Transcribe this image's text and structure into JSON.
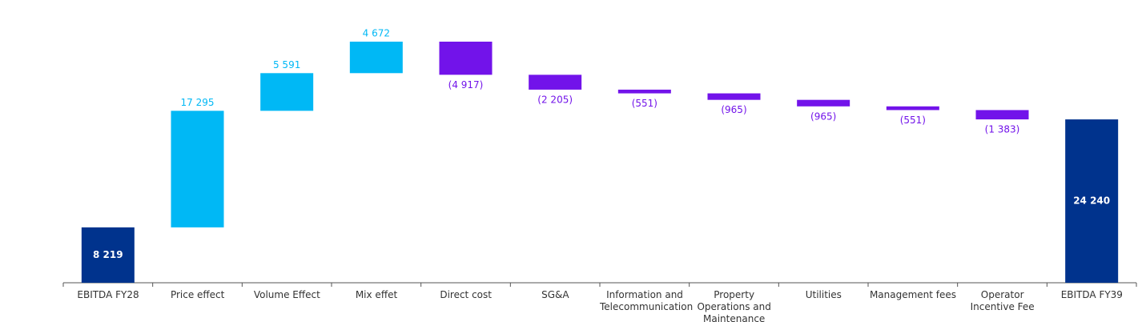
{
  "chart_data": {
    "type": "waterfall",
    "categories": [
      "EBITDA FY28",
      "Price effect",
      "Volume Effect",
      "Mix effet",
      "Direct cost",
      "SG&A",
      "Information and Telecommunication",
      "Property Operations and Maintenance",
      "Utilities",
      "Management fees",
      "Operator Incentive Fee",
      "EBITDA FY39"
    ],
    "measure": [
      "total",
      "relative",
      "relative",
      "relative",
      "relative",
      "relative",
      "relative",
      "relative",
      "relative",
      "relative",
      "relative",
      "total"
    ],
    "values": [
      8219,
      17295,
      5591,
      4672,
      -4917,
      -2205,
      -551,
      -965,
      -965,
      -551,
      -1383,
      24240
    ],
    "value_labels": [
      "8 219",
      "17 295",
      "5 591",
      "4 672",
      "(4 917)",
      "(2 205)",
      "(551)",
      "(965)",
      "(965)",
      "(551)",
      "(1 383)",
      "24 240"
    ],
    "colors": {
      "total": "#00338d",
      "increase": "#00b8f5",
      "decrease": "#7213ea"
    }
  }
}
